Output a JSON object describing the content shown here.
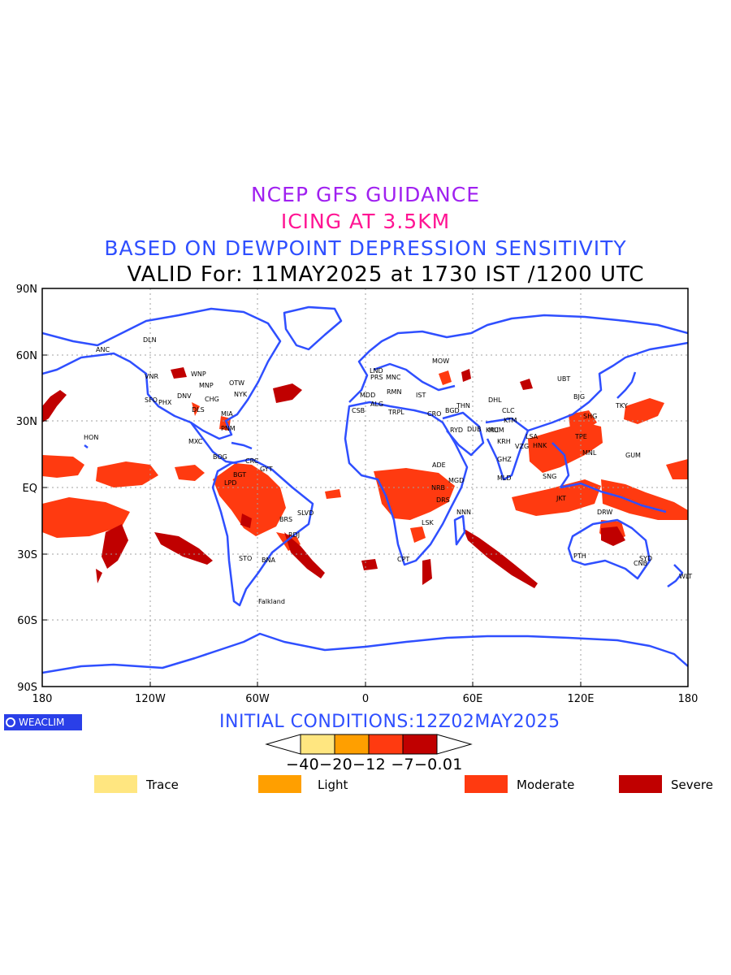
{
  "titles": {
    "line1": "NCEP GFS GUIDANCE",
    "line2": "ICING AT 3.5KM",
    "line3": "BASED ON DEWPOINT DEPRESSION SENSITIVITY",
    "line4": "VALID For: 11MAY2025 at 1730 IST /1200 UTC"
  },
  "axes": {
    "lat_labels": [
      "90N",
      "60N",
      "30N",
      "EQ",
      "30S",
      "60S",
      "90S"
    ],
    "lon_labels": [
      "180",
      "120W",
      "60W",
      "0",
      "60E",
      "120E",
      "180"
    ]
  },
  "colors": {
    "coast": "#2f4fff",
    "trace": "#ffe680",
    "light": "#ff9f00",
    "moderate": "#ff3a10",
    "severe": "#c00000",
    "grid": "#a0a0a0"
  },
  "stations": [
    "ANC",
    "DLN",
    "VNR",
    "WNP",
    "MNP",
    "OTW",
    "NYK",
    "DNV",
    "CHG",
    "SFO",
    "PHX",
    "DLS",
    "MIA",
    "HON",
    "MXC",
    "PNM",
    "BOG",
    "CRC",
    "GYT",
    "BGT",
    "LPD",
    "BRS",
    "SLVD",
    "RDJ",
    "STO",
    "BNA",
    "Falkland",
    "LND",
    "PRS",
    "MNC",
    "MDD",
    "RMN",
    "IST",
    "ALG",
    "CSB",
    "TRPL",
    "CRO",
    "BGD",
    "THN",
    "DHL",
    "MUM",
    "CLC",
    "KTM",
    "GHZ",
    "HNK",
    "TPE",
    "UBT",
    "BJG",
    "SHG",
    "TKY",
    "MNL",
    "GUM",
    "JKT",
    "ADE",
    "MGD",
    "NRB",
    "DRS",
    "LSK",
    "NNN",
    "CPT",
    "PTH",
    "SYD",
    "CNB",
    "WLT",
    "MOW",
    "RYD",
    "DUB",
    "KRC",
    "MLD",
    "SNG",
    "DRW",
    "KRH",
    "VZG",
    "LSA"
  ],
  "footer": {
    "brand": "WEACLIM",
    "initial_conditions": "INITIAL CONDITIONS:12Z02MAY2025",
    "colorbar_ticks": "−40−20−12 −7−0.01",
    "legend": [
      {
        "label": "Trace",
        "color": "#ffe680"
      },
      {
        "label": "Light",
        "color": "#ff9f00"
      },
      {
        "label": "Moderate",
        "color": "#ff3a10"
      },
      {
        "label": "Severe",
        "color": "#c00000"
      }
    ]
  }
}
